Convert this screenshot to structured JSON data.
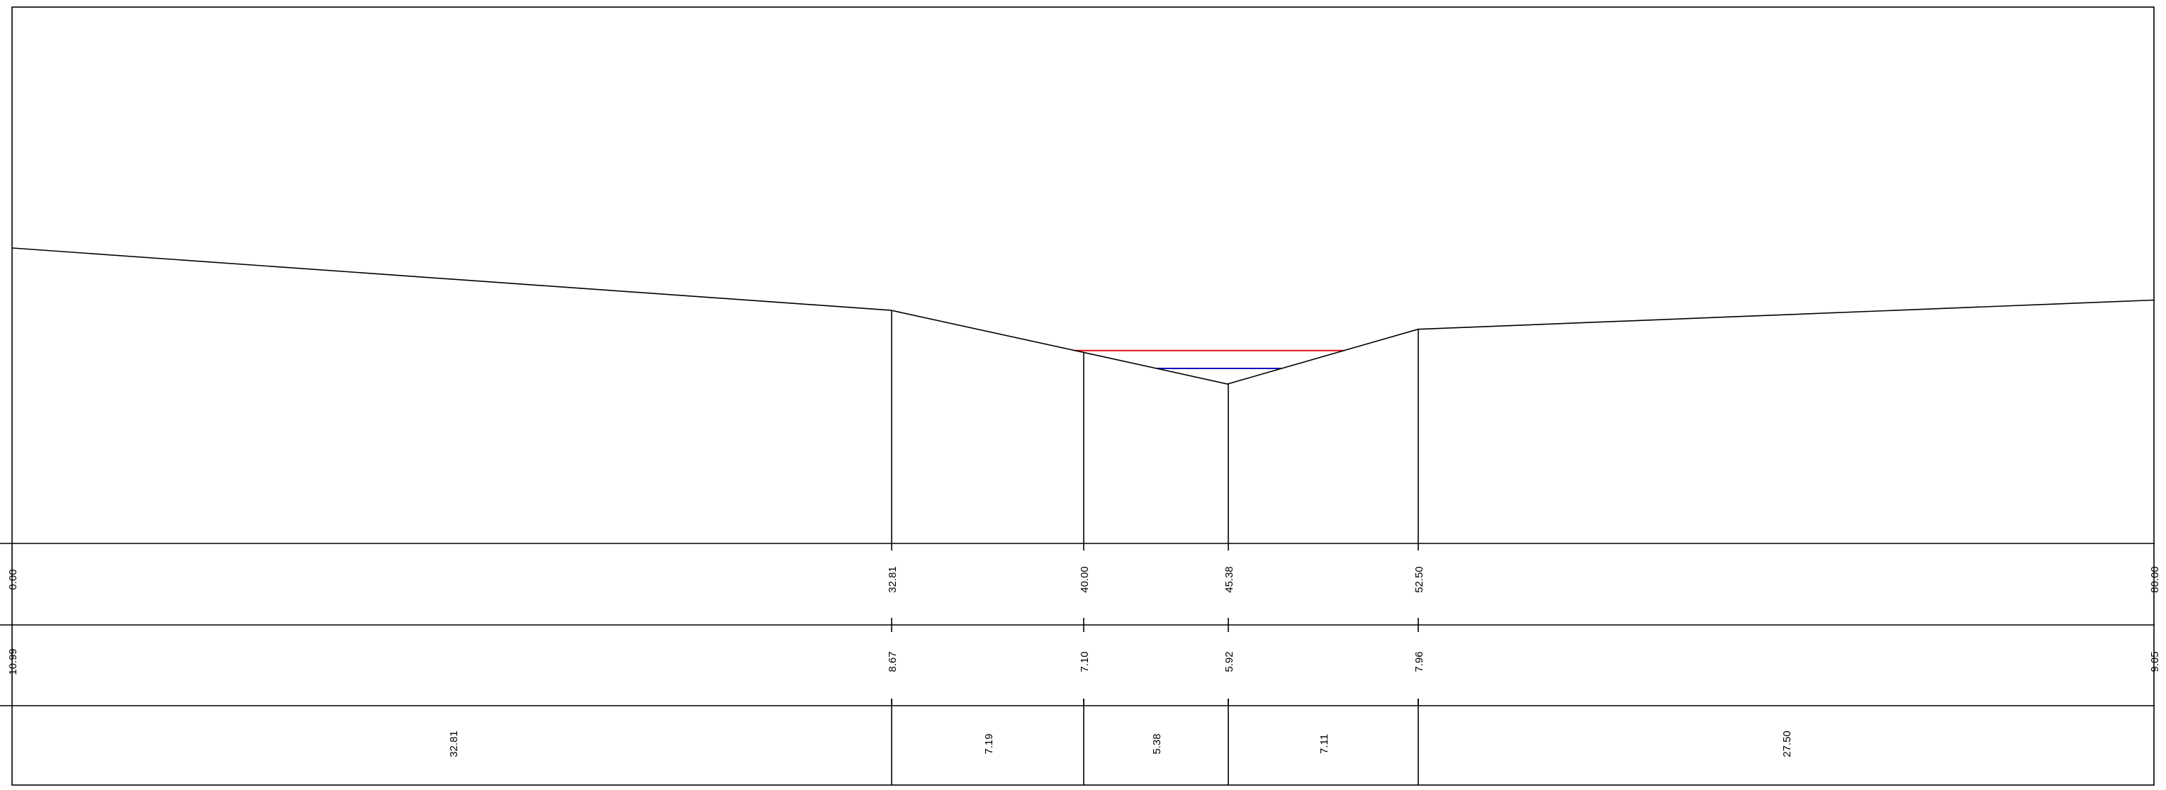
{
  "profile": {
    "stations": [
      "0.00",
      "32.81",
      "40.00",
      "45.38",
      "52.50",
      "80.00"
    ],
    "elevations": [
      "10.99",
      "8.67",
      "7.10",
      "5.92",
      "7.96",
      "9.05"
    ],
    "segments": [
      "32.81",
      "7.19",
      "5.38",
      "7.11",
      "27.50"
    ],
    "station_values": [
      0,
      32.81,
      40,
      45.38,
      52.5,
      80
    ],
    "elevation_values": [
      10.99,
      8.67,
      7.1,
      5.92,
      7.96,
      9.05
    ],
    "water_levels": [
      {
        "elevation": 7.17,
        "color": "#e01010"
      },
      {
        "elevation": 6.5,
        "color": "#1010c0"
      }
    ],
    "colors": {
      "lines": "#000000",
      "background": "#ffffff"
    }
  }
}
